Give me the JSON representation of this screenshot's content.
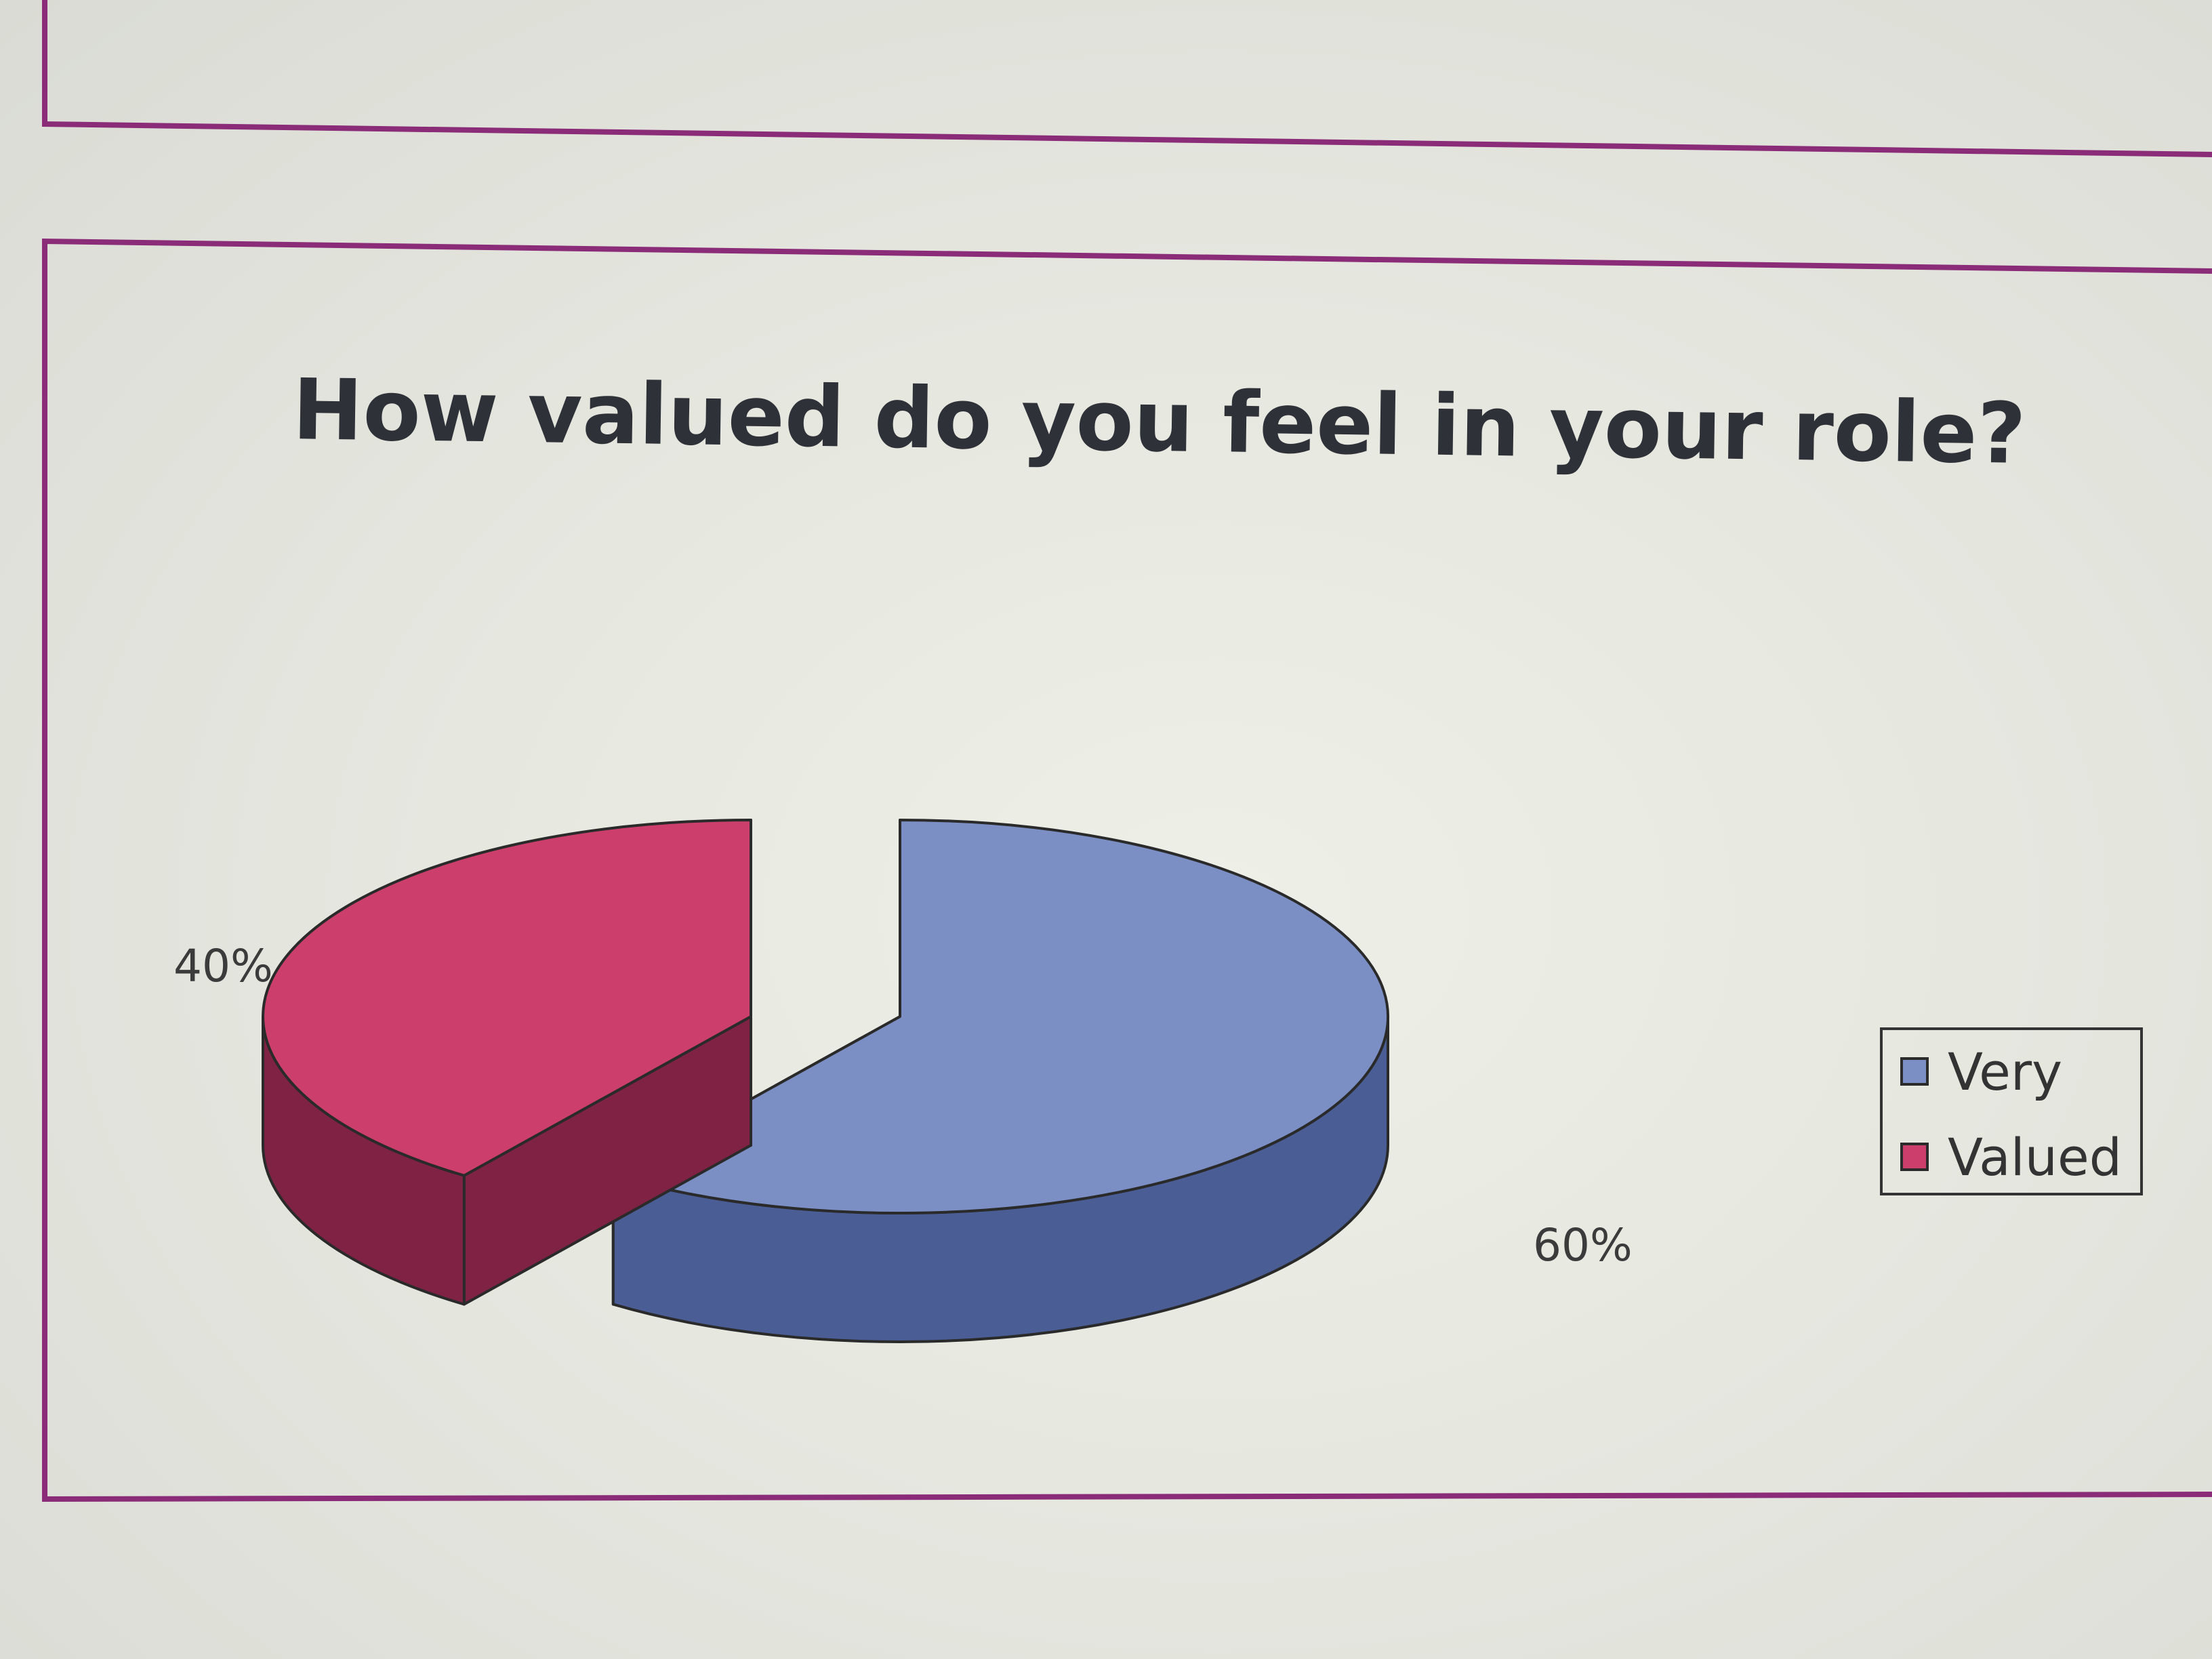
{
  "chart_data": {
    "type": "pie",
    "title": "How valued do you feel in your role?",
    "three_d": true,
    "exploded": true,
    "labels": [
      "Very",
      "Valued"
    ],
    "values": [
      60,
      40
    ],
    "value_labels": [
      "60%",
      "40%"
    ],
    "colors": [
      "#7b8fc4",
      "#cc3f6c"
    ],
    "side_colors": [
      "#4a5d94",
      "#7f2243"
    ],
    "legend": {
      "position": "right",
      "entries": [
        "Very",
        "Valued"
      ]
    }
  },
  "page": {
    "frame_color": "#8a2c77"
  }
}
